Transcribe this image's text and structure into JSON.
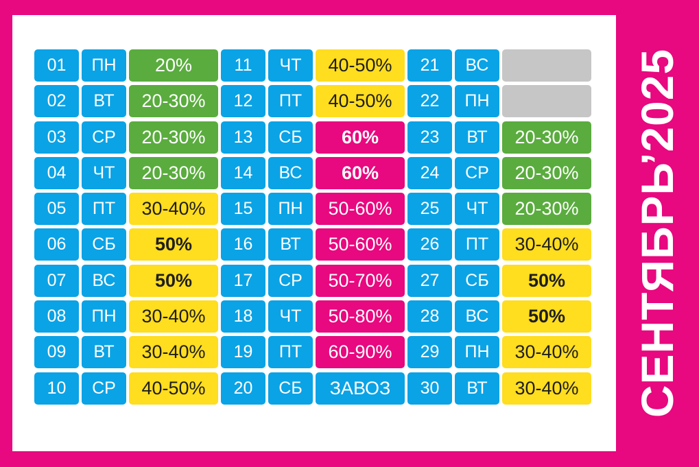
{
  "title": "СЕНТЯБРЬ’2025",
  "colors": {
    "background": "#e8087f",
    "panel": "#ffffff",
    "day_cell": "#0aa3e6",
    "green": "#5aac3e",
    "yellow": "#ffdd1f",
    "pink": "#e8087f",
    "blue": "#0aa3e6",
    "gray": "#c6c6c6"
  },
  "days": [
    {
      "num": "01",
      "wd": "ПН",
      "disc": "20%",
      "color": "green",
      "bold": false
    },
    {
      "num": "02",
      "wd": "ВТ",
      "disc": "20-30%",
      "color": "green",
      "bold": false
    },
    {
      "num": "03",
      "wd": "СР",
      "disc": "20-30%",
      "color": "green",
      "bold": false
    },
    {
      "num": "04",
      "wd": "ЧТ",
      "disc": "20-30%",
      "color": "green",
      "bold": false
    },
    {
      "num": "05",
      "wd": "ПТ",
      "disc": "30-40%",
      "color": "yellow",
      "bold": false
    },
    {
      "num": "06",
      "wd": "СБ",
      "disc": "50%",
      "color": "yellow",
      "bold": true
    },
    {
      "num": "07",
      "wd": "ВС",
      "disc": "50%",
      "color": "yellow",
      "bold": true
    },
    {
      "num": "08",
      "wd": "ПН",
      "disc": "30-40%",
      "color": "yellow",
      "bold": false
    },
    {
      "num": "09",
      "wd": "ВТ",
      "disc": "30-40%",
      "color": "yellow",
      "bold": false
    },
    {
      "num": "10",
      "wd": "СР",
      "disc": "40-50%",
      "color": "yellow",
      "bold": false
    },
    {
      "num": "11",
      "wd": "ЧТ",
      "disc": "40-50%",
      "color": "yellow",
      "bold": false
    },
    {
      "num": "12",
      "wd": "ПТ",
      "disc": "40-50%",
      "color": "yellow",
      "bold": false
    },
    {
      "num": "13",
      "wd": "СБ",
      "disc": "60%",
      "color": "pink",
      "bold": true
    },
    {
      "num": "14",
      "wd": "ВС",
      "disc": "60%",
      "color": "pink",
      "bold": true
    },
    {
      "num": "15",
      "wd": "ПН",
      "disc": "50-60%",
      "color": "pink",
      "bold": false
    },
    {
      "num": "16",
      "wd": "ВТ",
      "disc": "50-60%",
      "color": "pink",
      "bold": false
    },
    {
      "num": "17",
      "wd": "СР",
      "disc": "50-70%",
      "color": "pink",
      "bold": false
    },
    {
      "num": "18",
      "wd": "ЧТ",
      "disc": "50-80%",
      "color": "pink",
      "bold": false
    },
    {
      "num": "19",
      "wd": "ПТ",
      "disc": "60-90%",
      "color": "pink",
      "bold": false
    },
    {
      "num": "20",
      "wd": "СБ",
      "disc": "ЗАВОЗ",
      "color": "blue",
      "bold": false
    },
    {
      "num": "21",
      "wd": "ВС",
      "disc": "",
      "color": "gray",
      "bold": false
    },
    {
      "num": "22",
      "wd": "ПН",
      "disc": "",
      "color": "gray",
      "bold": false
    },
    {
      "num": "23",
      "wd": "ВТ",
      "disc": "20-30%",
      "color": "green",
      "bold": false
    },
    {
      "num": "24",
      "wd": "СР",
      "disc": "20-30%",
      "color": "green",
      "bold": false
    },
    {
      "num": "25",
      "wd": "ЧТ",
      "disc": "20-30%",
      "color": "green",
      "bold": false
    },
    {
      "num": "26",
      "wd": "ПТ",
      "disc": "30-40%",
      "color": "yellow",
      "bold": false
    },
    {
      "num": "27",
      "wd": "СБ",
      "disc": "50%",
      "color": "yellow",
      "bold": true
    },
    {
      "num": "28",
      "wd": "ВС",
      "disc": "50%",
      "color": "yellow",
      "bold": true
    },
    {
      "num": "29",
      "wd": "ПН",
      "disc": "30-40%",
      "color": "yellow",
      "bold": false
    },
    {
      "num": "30",
      "wd": "ВТ",
      "disc": "30-40%",
      "color": "yellow",
      "bold": false
    }
  ]
}
